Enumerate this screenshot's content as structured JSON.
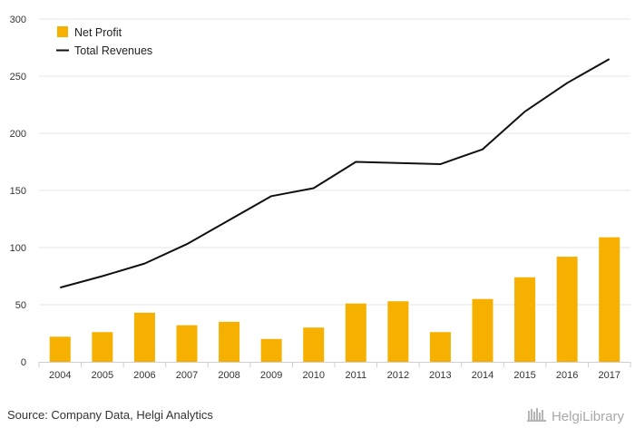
{
  "chart_data": {
    "type": "bar+line",
    "categories": [
      "2004",
      "2005",
      "2006",
      "2007",
      "2008",
      "2009",
      "2010",
      "2011",
      "2012",
      "2013",
      "2014",
      "2015",
      "2016",
      "2017"
    ],
    "series": [
      {
        "name": "Net Profit",
        "type": "bar",
        "color": "#f5b000",
        "values": [
          22,
          26,
          43,
          32,
          35,
          20,
          30,
          51,
          53,
          26,
          55,
          74,
          92,
          109
        ]
      },
      {
        "name": "Total Revenues",
        "type": "line",
        "color": "#111111",
        "values": [
          65,
          75,
          86,
          103,
          124,
          145,
          152,
          175,
          174,
          173,
          186,
          219,
          244,
          265
        ]
      }
    ],
    "ylim": [
      0,
      300
    ],
    "yticks": [
      0,
      50,
      100,
      150,
      200,
      250,
      300
    ],
    "grid": true,
    "legend_position": "top-left",
    "title": "",
    "xlabel": "",
    "ylabel": ""
  },
  "footer": {
    "source": "Source: Company Data, Helgi Analytics",
    "brand": "HelgiLibrary"
  }
}
